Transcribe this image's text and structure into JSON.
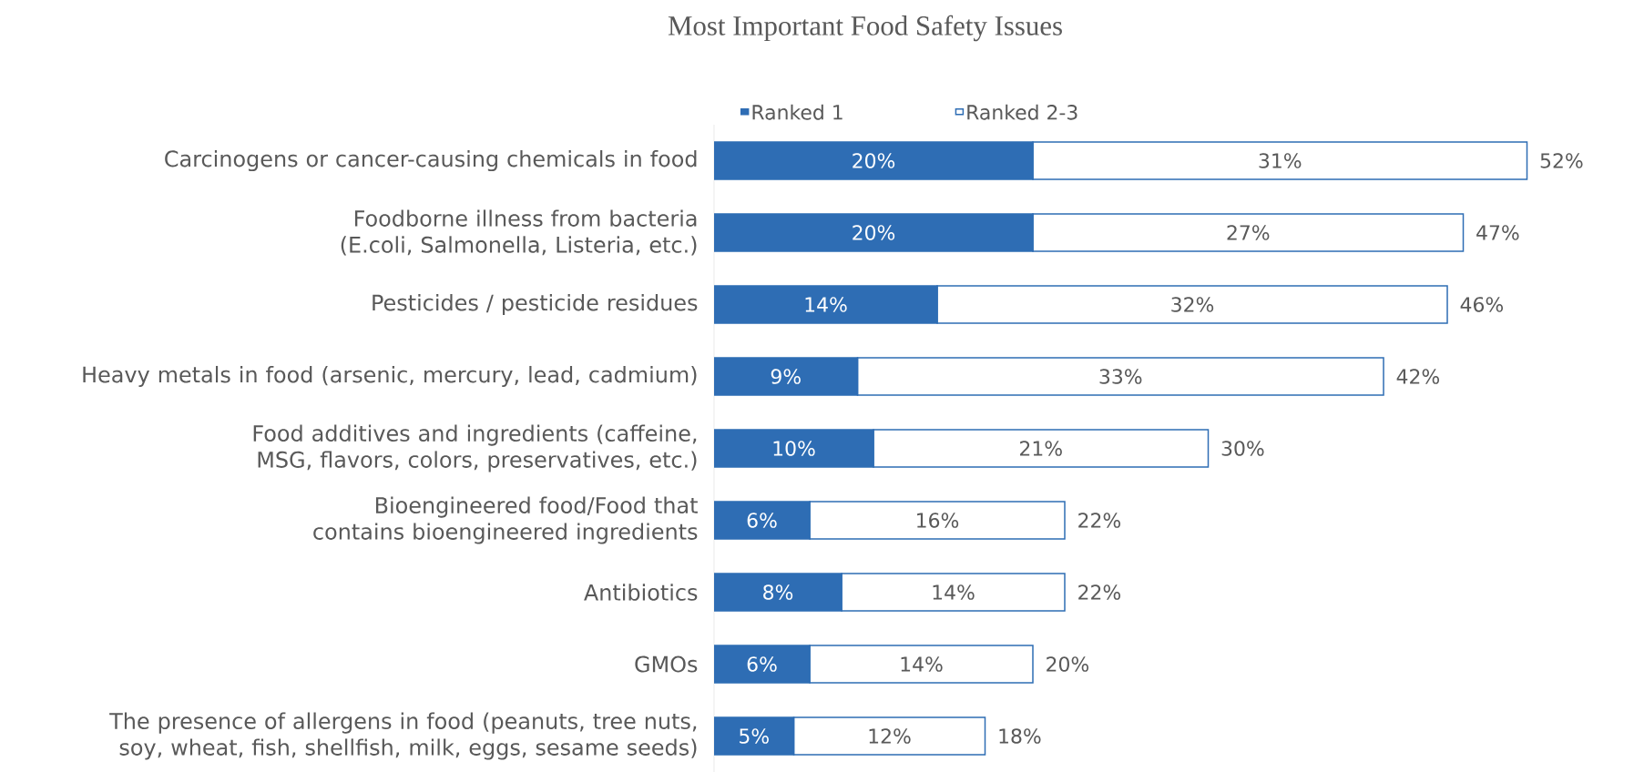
{
  "chart_data": {
    "type": "bar",
    "orientation": "horizontal",
    "stacked": true,
    "title": "Most Important Food Safety Issues",
    "categories": [
      "Carcinogens or cancer-causing chemicals in food",
      "Foodborne illness from bacteria (E.coli, Salmonella, Listeria, etc.)",
      "Pesticides / pesticide residues",
      "Heavy metals in food (arsenic, mercury, lead, cadmium)",
      "Food additives and ingredients (caffeine, MSG, flavors, colors, preservatives, etc.)",
      "Bioengineered food/Food that contains bioengineered ingredients",
      "Antibiotics",
      "GMOs",
      "The presence of allergens in food (peanuts, tree nuts, soy, wheat, fish, shellfish, milk, eggs, sesame seeds)"
    ],
    "series": [
      {
        "name": "Ranked 1",
        "color": "#2e6db4",
        "values": [
          20,
          20,
          14,
          9,
          10,
          6,
          8,
          6,
          5
        ],
        "value_labels": [
          "20%",
          "20%",
          "14%",
          "9%",
          "10%",
          "6%",
          "8%",
          "6%",
          "5%"
        ]
      },
      {
        "name": "Ranked 2-3",
        "color": "#ffffff",
        "values": [
          31,
          27,
          32,
          33,
          21,
          16,
          14,
          14,
          12
        ],
        "value_labels": [
          "31%",
          "27%",
          "32%",
          "33%",
          "21%",
          "16%",
          "14%",
          "14%",
          "12%"
        ]
      }
    ],
    "totals": [
      "52%",
      "47%",
      "46%",
      "42%",
      "30%",
      "22%",
      "22%",
      "20%",
      "18%"
    ],
    "legend": "top"
  }
}
